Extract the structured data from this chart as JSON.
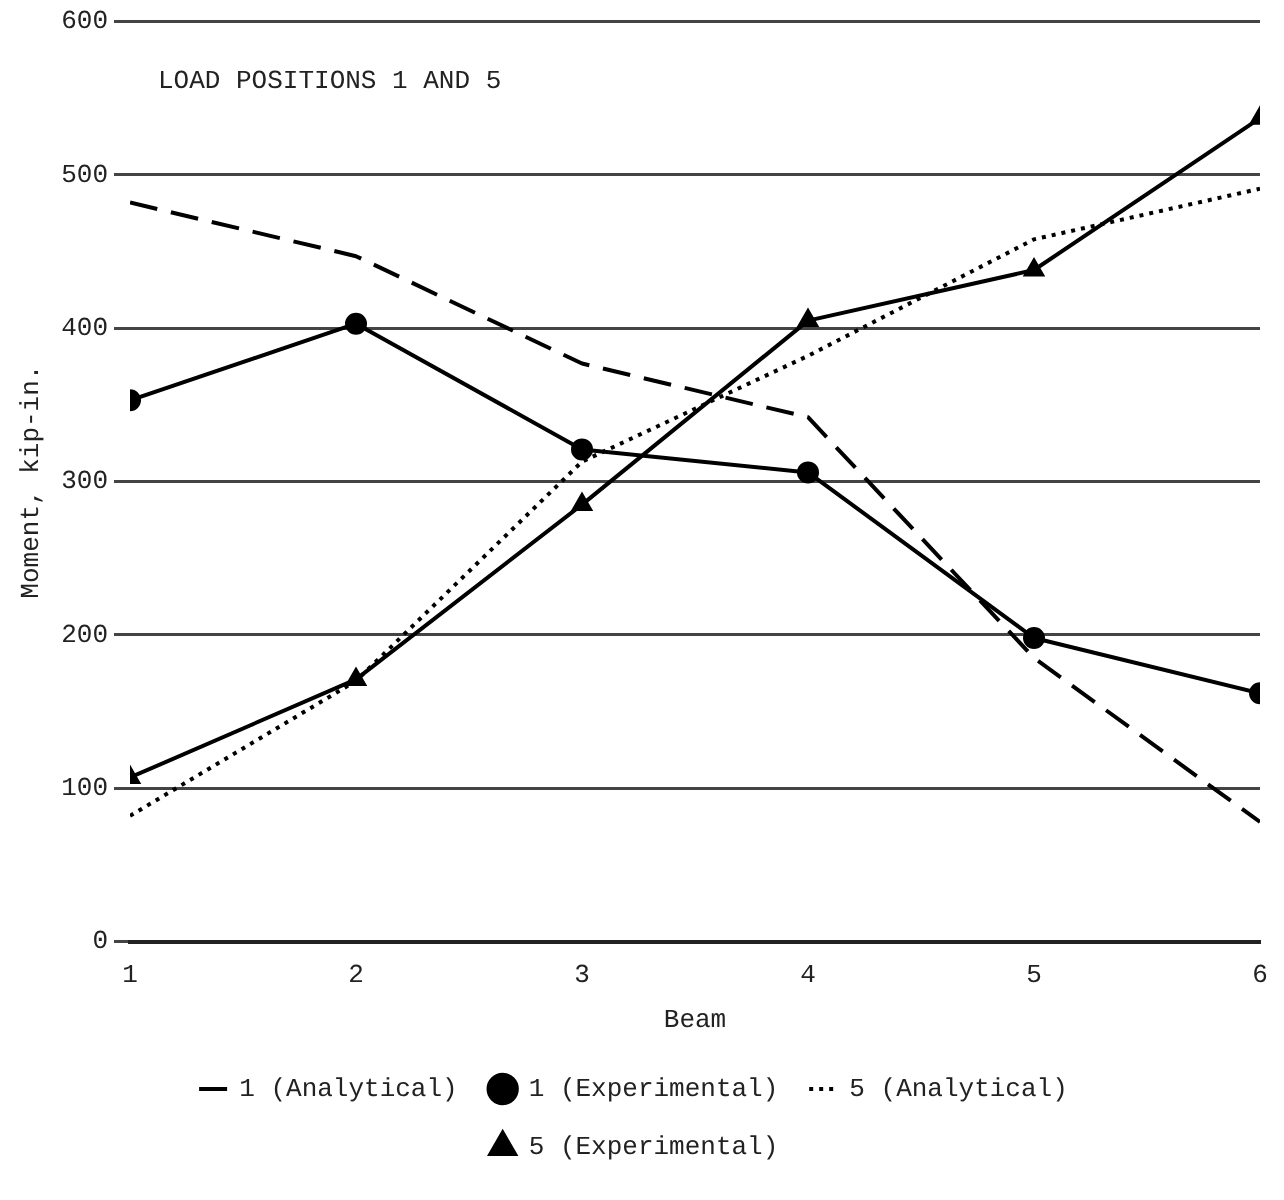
{
  "chart_data": {
    "type": "line",
    "xlabel": "Beam",
    "ylabel": "Moment, kip-in.",
    "annotations": [
      "LOAD POSITIONS 1 AND 5"
    ],
    "x": [
      1,
      2,
      3,
      4,
      5,
      6
    ],
    "xlim": [
      1,
      6
    ],
    "xticks": [
      1,
      2,
      3,
      4,
      5,
      6
    ],
    "ylim": [
      0,
      600
    ],
    "yticks": [
      0,
      100,
      200,
      300,
      400,
      500,
      600
    ],
    "grid": "y",
    "legend": "bottom",
    "series": [
      {
        "name": "1 (Analytical)",
        "color": "#000000",
        "line_style": "dashed",
        "marker": "none",
        "values": [
          482,
          447,
          377,
          342,
          185,
          78
        ]
      },
      {
        "name": "1 (Experimental)",
        "color": "#000000",
        "line_style": "solid",
        "marker": "circle",
        "values": [
          353,
          403,
          321,
          306,
          198,
          162
        ]
      },
      {
        "name": "5 (Analytical)",
        "color": "#000000",
        "line_style": "dotted",
        "marker": "none",
        "values": [
          82,
          170,
          313,
          382,
          458,
          491
        ]
      },
      {
        "name": "5 (Experimental)",
        "color": "#000000",
        "line_style": "solid",
        "marker": "triangle",
        "values": [
          107,
          171,
          285,
          405,
          438,
          537
        ]
      }
    ]
  }
}
